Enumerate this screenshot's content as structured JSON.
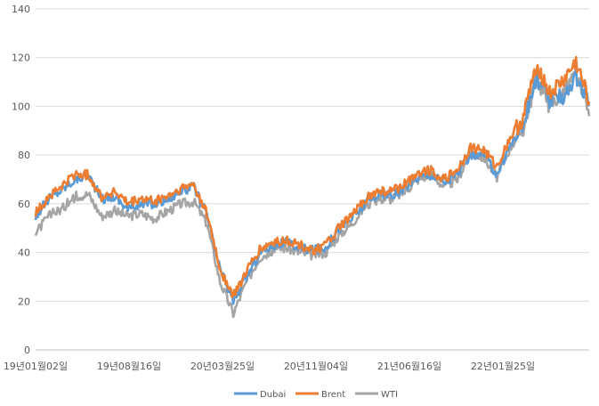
{
  "chart_data": {
    "type": "line",
    "title": "",
    "xlabel": "",
    "ylabel": "",
    "ylim": [
      0,
      140
    ],
    "yticks": [
      "0",
      "20",
      "40",
      "60",
      "80",
      "100",
      "120",
      "140"
    ],
    "xticks": [
      "19년01월02일",
      "19년08월16일",
      "20년03월25일",
      "20년11월04일",
      "21년06월16일",
      "22년01월25일"
    ],
    "x": [
      "2019-01",
      "2019-02",
      "2019-03",
      "2019-04",
      "2019-05",
      "2019-06",
      "2019-07",
      "2019-08",
      "2019-09",
      "2019-10",
      "2019-11",
      "2019-12",
      "2020-01",
      "2020-02",
      "2020-03",
      "2020-04",
      "2020-05",
      "2020-06",
      "2020-07",
      "2020-08",
      "2020-09",
      "2020-10",
      "2020-11",
      "2020-12",
      "2021-01",
      "2021-02",
      "2021-03",
      "2021-04",
      "2021-05",
      "2021-06",
      "2021-07",
      "2021-08",
      "2021-09",
      "2021-10",
      "2021-11",
      "2021-12",
      "2022-01",
      "2022-02",
      "2022-03",
      "2022-04",
      "2022-05",
      "2022-06",
      "2022-07"
    ],
    "series": [
      {
        "name": "Dubai",
        "color": "#5b9bd5",
        "values": [
          55,
          62,
          66,
          70,
          72,
          62,
          63,
          58,
          60,
          60,
          62,
          65,
          67,
          55,
          33,
          20,
          30,
          40,
          43,
          44,
          42,
          41,
          42,
          50,
          54,
          60,
          64,
          63,
          66,
          71,
          72,
          69,
          72,
          80,
          80,
          72,
          84,
          92,
          112,
          102,
          104,
          112,
          100
        ]
      },
      {
        "name": "Brent",
        "color": "#ed7d31",
        "values": [
          56,
          63,
          67,
          72,
          72,
          63,
          65,
          60,
          62,
          61,
          63,
          66,
          68,
          56,
          33,
          22,
          32,
          41,
          44,
          45,
          43,
          41,
          43,
          50,
          55,
          62,
          65,
          65,
          68,
          73,
          74,
          70,
          74,
          83,
          82,
          75,
          87,
          95,
          118,
          105,
          110,
          118,
          102
        ]
      },
      {
        "name": "WTI",
        "color": "#a5a5a5",
        "values": [
          48,
          55,
          58,
          63,
          64,
          55,
          57,
          55,
          56,
          54,
          57,
          60,
          61,
          52,
          28,
          15,
          28,
          38,
          41,
          42,
          40,
          39,
          40,
          47,
          52,
          59,
          62,
          62,
          65,
          70,
          72,
          67,
          70,
          81,
          79,
          71,
          83,
          91,
          112,
          100,
          106,
          113,
          96
        ]
      }
    ],
    "legend_position": "bottom",
    "grid": true
  }
}
